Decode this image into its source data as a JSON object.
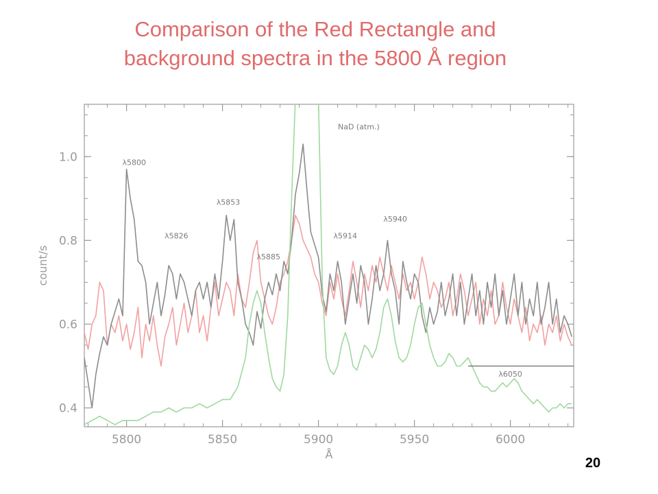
{
  "title": {
    "line1": "Comparison of the Red Rectangle and",
    "line2": "background spectra in the 5800 Å region",
    "color": "#e06b6b"
  },
  "page_number": "20",
  "chart_data": {
    "type": "line",
    "xlabel": "Å",
    "ylabel": "count/s",
    "xlim": [
      5778,
      6033
    ],
    "ylim": [
      0.355,
      1.125
    ],
    "xticks": [
      5800,
      5850,
      5900,
      5950,
      6000
    ],
    "xtick_labels": [
      "5800",
      "5850",
      "5900",
      "5950",
      "6000"
    ],
    "yticks": [
      0.4,
      0.6,
      0.8,
      1.0
    ],
    "ytick_labels": [
      "0.4",
      "0.6",
      "0.8",
      "1.0"
    ],
    "grid": false,
    "colors": {
      "axes": "#9a9a9a",
      "gray": "#8c8c8c",
      "red": "#f2a0a0",
      "green": "#9fd89f",
      "annotation": "#6a6a6a"
    },
    "series": [
      {
        "key": "gray",
        "x": [
          5778,
          5780,
          5782,
          5784,
          5786,
          5788,
          5790,
          5792,
          5794,
          5796,
          5798,
          5800,
          5802,
          5804,
          5806,
          5808,
          5810,
          5812,
          5814,
          5816,
          5818,
          5820,
          5822,
          5824,
          5826,
          5828,
          5830,
          5832,
          5834,
          5836,
          5838,
          5840,
          5842,
          5844,
          5846,
          5848,
          5850,
          5852,
          5854,
          5856,
          5858,
          5860,
          5862,
          5864,
          5866,
          5868,
          5870,
          5872,
          5874,
          5876,
          5878,
          5880,
          5882,
          5884,
          5886,
          5888,
          5890,
          5892,
          5894,
          5896,
          5898,
          5900,
          5902,
          5904,
          5906,
          5908,
          5910,
          5912,
          5914,
          5916,
          5918,
          5920,
          5922,
          5924,
          5926,
          5928,
          5930,
          5932,
          5934,
          5936,
          5938,
          5940,
          5942,
          5944,
          5946,
          5948,
          5950,
          5952,
          5954,
          5956,
          5958,
          5960,
          5962,
          5964,
          5966,
          5968,
          5970,
          5972,
          5974,
          5976,
          5978,
          5980,
          5982,
          5984,
          5986,
          5988,
          5990,
          5992,
          5994,
          5996,
          5998,
          6000,
          6002,
          6004,
          6006,
          6008,
          6010,
          6012,
          6014,
          6016,
          6018,
          6020,
          6022,
          6024,
          6026,
          6028,
          6030,
          6032
        ],
        "y": [
          0.52,
          0.46,
          0.4,
          0.48,
          0.53,
          0.57,
          0.55,
          0.6,
          0.63,
          0.66,
          0.62,
          0.97,
          0.9,
          0.85,
          0.75,
          0.74,
          0.7,
          0.6,
          0.65,
          0.7,
          0.62,
          0.67,
          0.74,
          0.72,
          0.66,
          0.72,
          0.7,
          0.66,
          0.62,
          0.68,
          0.7,
          0.66,
          0.7,
          0.64,
          0.72,
          0.66,
          0.75,
          0.86,
          0.8,
          0.85,
          0.7,
          0.66,
          0.6,
          0.58,
          0.55,
          0.63,
          0.59,
          0.66,
          0.7,
          0.67,
          0.72,
          0.68,
          0.75,
          0.72,
          0.8,
          0.91,
          0.96,
          1.03,
          0.92,
          0.82,
          0.79,
          0.76,
          0.67,
          0.63,
          0.72,
          0.68,
          0.75,
          0.7,
          0.6,
          0.66,
          0.72,
          0.65,
          0.74,
          0.7,
          0.6,
          0.66,
          0.74,
          0.68,
          0.72,
          0.8,
          0.72,
          0.68,
          0.6,
          0.75,
          0.7,
          0.66,
          0.72,
          0.7,
          0.62,
          0.58,
          0.64,
          0.6,
          0.63,
          0.7,
          0.62,
          0.66,
          0.72,
          0.62,
          0.7,
          0.6,
          0.66,
          0.72,
          0.62,
          0.68,
          0.6,
          0.7,
          0.64,
          0.72,
          0.62,
          0.68,
          0.6,
          0.66,
          0.72,
          0.62,
          0.7,
          0.6,
          0.66,
          0.62,
          0.7,
          0.6,
          0.64,
          0.7,
          0.6,
          0.66,
          0.58,
          0.62,
          0.6,
          0.57
        ]
      },
      {
        "key": "red",
        "x": [
          5778,
          5780,
          5782,
          5784,
          5786,
          5788,
          5790,
          5792,
          5794,
          5796,
          5798,
          5800,
          5802,
          5804,
          5806,
          5808,
          5810,
          5812,
          5814,
          5816,
          5818,
          5820,
          5822,
          5824,
          5826,
          5828,
          5830,
          5832,
          5834,
          5836,
          5838,
          5840,
          5842,
          5844,
          5846,
          5848,
          5850,
          5852,
          5854,
          5856,
          5858,
          5860,
          5862,
          5864,
          5866,
          5868,
          5870,
          5872,
          5874,
          5876,
          5878,
          5880,
          5882,
          5884,
          5886,
          5888,
          5890,
          5892,
          5894,
          5896,
          5898,
          5900,
          5902,
          5904,
          5906,
          5908,
          5910,
          5912,
          5914,
          5916,
          5918,
          5920,
          5922,
          5924,
          5926,
          5928,
          5930,
          5932,
          5934,
          5936,
          5938,
          5940,
          5942,
          5944,
          5946,
          5948,
          5950,
          5952,
          5954,
          5956,
          5958,
          5960,
          5962,
          5964,
          5966,
          5968,
          5970,
          5972,
          5974,
          5976,
          5978,
          5980,
          5982,
          5984,
          5986,
          5988,
          5990,
          5992,
          5994,
          5996,
          5998,
          6000,
          6002,
          6004,
          6006,
          6008,
          6010,
          6012,
          6014,
          6016,
          6018,
          6020,
          6022,
          6024,
          6026,
          6028,
          6030,
          6032
        ],
        "y": [
          0.58,
          0.54,
          0.6,
          0.62,
          0.7,
          0.68,
          0.55,
          0.6,
          0.58,
          0.62,
          0.56,
          0.6,
          0.54,
          0.58,
          0.64,
          0.52,
          0.6,
          0.56,
          0.62,
          0.55,
          0.5,
          0.57,
          0.6,
          0.64,
          0.55,
          0.6,
          0.65,
          0.58,
          0.62,
          0.68,
          0.58,
          0.62,
          0.56,
          0.64,
          0.7,
          0.62,
          0.66,
          0.7,
          0.68,
          0.62,
          0.72,
          0.66,
          0.64,
          0.7,
          0.77,
          0.8,
          0.7,
          0.66,
          0.62,
          0.6,
          0.64,
          0.7,
          0.72,
          0.75,
          0.8,
          0.86,
          0.84,
          0.8,
          0.78,
          0.76,
          0.72,
          0.7,
          0.65,
          0.62,
          0.7,
          0.66,
          0.72,
          0.66,
          0.62,
          0.68,
          0.75,
          0.7,
          0.64,
          0.72,
          0.68,
          0.74,
          0.7,
          0.76,
          0.72,
          0.68,
          0.74,
          0.7,
          0.66,
          0.72,
          0.68,
          0.7,
          0.66,
          0.7,
          0.76,
          0.72,
          0.66,
          0.7,
          0.68,
          0.64,
          0.66,
          0.7,
          0.62,
          0.66,
          0.72,
          0.68,
          0.62,
          0.66,
          0.7,
          0.6,
          0.66,
          0.62,
          0.68,
          0.6,
          0.62,
          0.7,
          0.64,
          0.6,
          0.66,
          0.62,
          0.58,
          0.64,
          0.56,
          0.6,
          0.58,
          0.62,
          0.55,
          0.6,
          0.58,
          0.62,
          0.56,
          0.6,
          0.57,
          0.55
        ]
      },
      {
        "key": "green",
        "x": [
          5778,
          5782,
          5786,
          5790,
          5794,
          5798,
          5802,
          5806,
          5810,
          5814,
          5818,
          5822,
          5826,
          5830,
          5834,
          5838,
          5842,
          5846,
          5850,
          5854,
          5858,
          5862,
          5864,
          5866,
          5868,
          5870,
          5872,
          5874,
          5876,
          5878,
          5880,
          5882,
          5884,
          5886,
          5888,
          5890,
          5892,
          5894,
          5896,
          5898,
          5900,
          5902,
          5904,
          5906,
          5908,
          5910,
          5912,
          5914,
          5916,
          5918,
          5920,
          5922,
          5924,
          5926,
          5928,
          5930,
          5932,
          5934,
          5936,
          5938,
          5940,
          5942,
          5944,
          5946,
          5948,
          5950,
          5952,
          5954,
          5956,
          5958,
          5960,
          5962,
          5964,
          5966,
          5968,
          5970,
          5972,
          5974,
          5976,
          5978,
          5980,
          5982,
          5984,
          5986,
          5988,
          5990,
          5992,
          5994,
          5996,
          5998,
          6000,
          6002,
          6004,
          6006,
          6008,
          6010,
          6012,
          6014,
          6016,
          6018,
          6020,
          6022,
          6024,
          6026,
          6028,
          6030,
          6032
        ],
        "y": [
          0.36,
          0.37,
          0.38,
          0.37,
          0.36,
          0.37,
          0.37,
          0.37,
          0.38,
          0.39,
          0.39,
          0.4,
          0.39,
          0.4,
          0.4,
          0.41,
          0.4,
          0.41,
          0.42,
          0.42,
          0.45,
          0.52,
          0.6,
          0.65,
          0.68,
          0.65,
          0.58,
          0.52,
          0.47,
          0.45,
          0.44,
          0.48,
          0.62,
          0.9,
          1.14,
          1.14,
          1.14,
          1.14,
          1.14,
          1.14,
          1.14,
          0.7,
          0.52,
          0.49,
          0.48,
          0.5,
          0.55,
          0.58,
          0.55,
          0.5,
          0.49,
          0.52,
          0.55,
          0.54,
          0.52,
          0.54,
          0.58,
          0.64,
          0.66,
          0.62,
          0.56,
          0.52,
          0.51,
          0.52,
          0.55,
          0.6,
          0.64,
          0.65,
          0.6,
          0.55,
          0.52,
          0.5,
          0.5,
          0.51,
          0.53,
          0.52,
          0.5,
          0.5,
          0.51,
          0.52,
          0.5,
          0.48,
          0.46,
          0.45,
          0.45,
          0.44,
          0.44,
          0.45,
          0.46,
          0.45,
          0.46,
          0.47,
          0.46,
          0.44,
          0.43,
          0.42,
          0.41,
          0.42,
          0.41,
          0.4,
          0.39,
          0.4,
          0.4,
          0.41,
          0.4,
          0.41,
          0.41
        ]
      }
    ],
    "annotations": [
      {
        "text": "λ5800",
        "x": 5804,
        "y": 0.98
      },
      {
        "text": "λ5826",
        "x": 5826,
        "y": 0.805
      },
      {
        "text": "λ5853",
        "x": 5853,
        "y": 0.885
      },
      {
        "text": "λ5885",
        "x": 5874,
        "y": 0.755
      },
      {
        "text": "NaD (atm.)",
        "x": 5921,
        "y": 1.065
      },
      {
        "text": "λ5914",
        "x": 5914,
        "y": 0.805
      },
      {
        "text": "λ5940",
        "x": 5940,
        "y": 0.845
      },
      {
        "text": "λ6050",
        "x": 6000,
        "y": 0.475
      }
    ],
    "marker_line": {
      "x1": 5978,
      "x2": 6033,
      "y": 0.5
    }
  }
}
